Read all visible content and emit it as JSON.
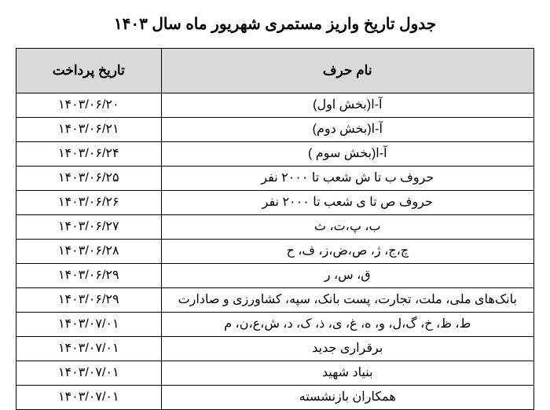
{
  "title": "جدول تاریخ واریز مستمری شهریور ماه سال ۱۴۰۳",
  "table": {
    "header": {
      "name": "نام حرف",
      "date": "تاریخ پرداخت"
    },
    "header_bg": "#d9d9d9",
    "border_color": "#000000",
    "text_color": "#000000",
    "title_fontsize": 20,
    "cell_fontsize": 16,
    "rows": [
      {
        "name": "آ-ا(بخش اول)",
        "date": "۱۴۰۳/۰۶/۲۰"
      },
      {
        "name": "آ-ا(بخش دوم)",
        "date": "۱۴۰۳/۰۶/۲۱"
      },
      {
        "name": "آ-ا(بخش سوم )",
        "date": "۱۴۰۳/۰۶/۲۴"
      },
      {
        "name": "حروف ب تا ش شعب تا ۲۰۰۰ نفر",
        "date": "۱۴۰۳/۰۶/۲۵"
      },
      {
        "name": "حروف ص تا ی  شعب تا ۲۰۰۰ نفر",
        "date": "۱۴۰۳/۰۶/۲۶"
      },
      {
        "name": "ب، پ،ت، ث",
        "date": "۱۴۰۳/۰۶/۲۷"
      },
      {
        "name": "چ،ج، ژ، ص،ض،ز، ف، ح",
        "date": "۱۴۰۳/۰۶/۲۸"
      },
      {
        "name": "ق، س، ر",
        "date": "۱۴۰۳/۰۶/۲۹"
      },
      {
        "name": "بانک‌های ملی، ملت، تجارت، پست بانک، سپه، کشاورزی و صادارت",
        "date": "۱۴۰۳/۰۶/۲۹"
      },
      {
        "name": "ط، ظ، خ، گ،ل، و، ه، غ، ی، ذ، ک، د، ش،ع،ن، م",
        "date": "۱۴۰۳/۰۷/۰۱"
      },
      {
        "name": "برقراری جدید",
        "date": "۱۴۰۳/۰۷/۰۱"
      },
      {
        "name": "بنیاد شهید",
        "date": "۱۴۰۳/۰۷/۰۱"
      },
      {
        "name": "همکاران بازنشسته",
        "date": "۱۴۰۳/۰۷/۰۱"
      }
    ]
  }
}
